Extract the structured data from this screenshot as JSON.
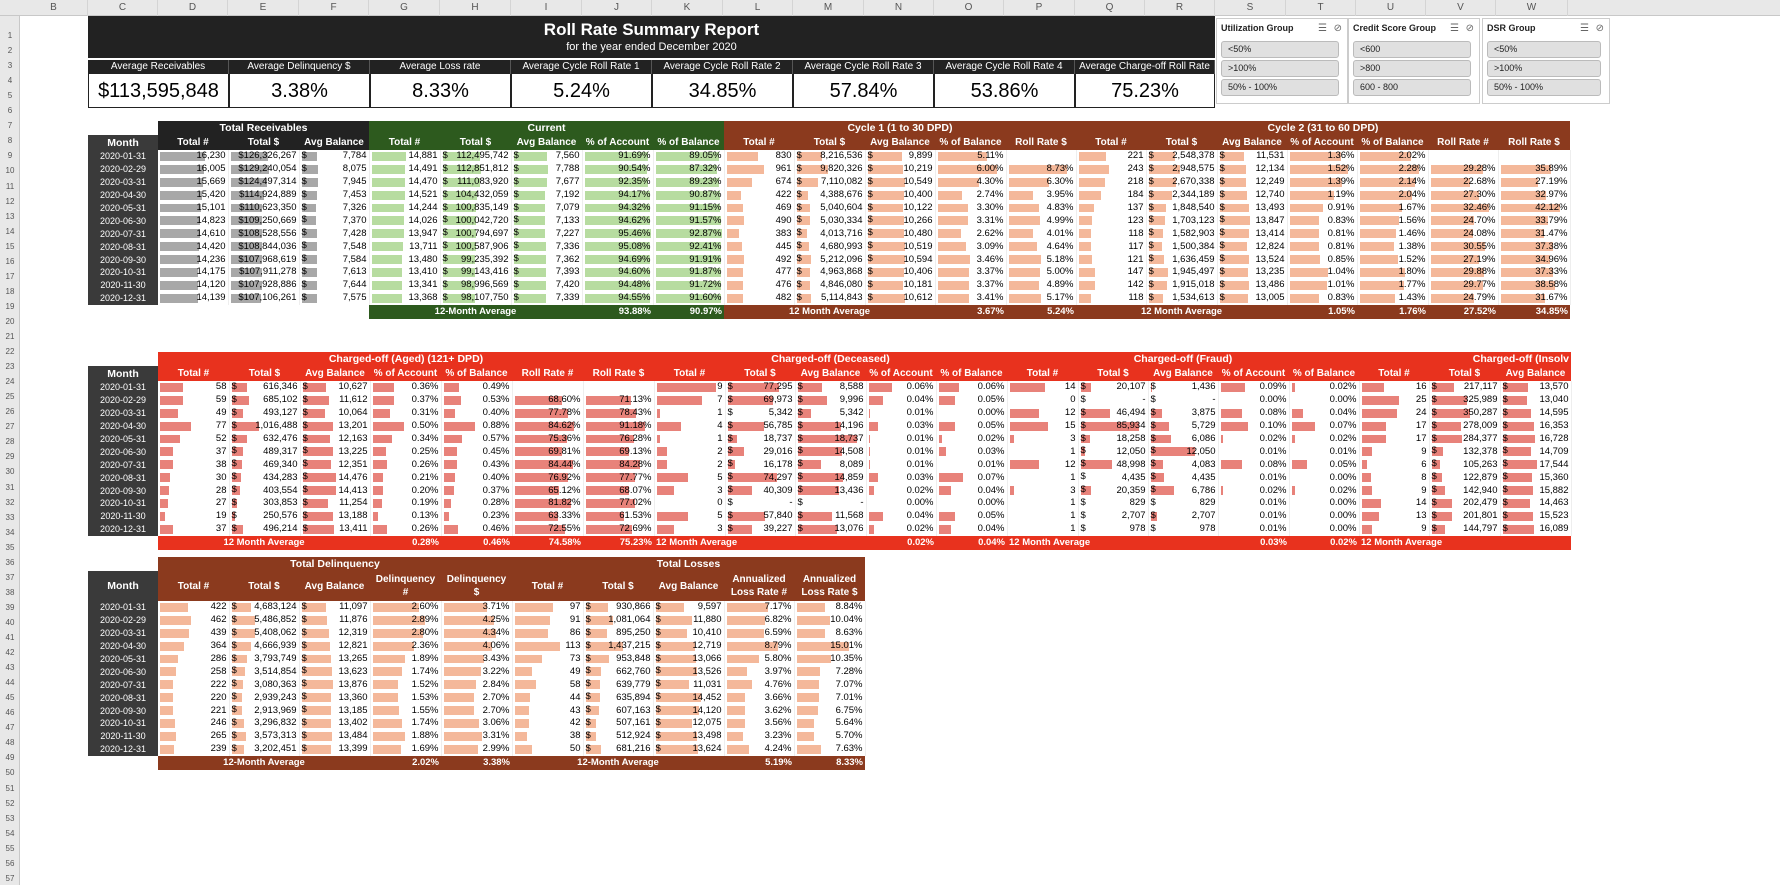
{
  "columns": [
    "B",
    "C",
    "D",
    "E",
    "F",
    "G",
    "H",
    "I",
    "J",
    "K",
    "L",
    "M",
    "N",
    "O",
    "P",
    "Q",
    "R",
    "S",
    "T",
    "U",
    "V",
    "W"
  ],
  "rows": [
    "1",
    "2",
    "3",
    "4",
    "5",
    "6",
    "7",
    "8",
    "9",
    "10",
    "11",
    "12",
    "13",
    "14",
    "15",
    "16",
    "17",
    "18",
    "19",
    "20",
    "21",
    "22",
    "23",
    "24",
    "25",
    "26",
    "27",
    "28",
    "29",
    "30",
    "31",
    "32",
    "33",
    "34",
    "35",
    "36",
    "37",
    "38",
    "39",
    "40",
    "41",
    "42",
    "43",
    "44",
    "45",
    "46",
    "47",
    "48",
    "49",
    "50",
    "51",
    "52",
    "53",
    "54",
    "55",
    "56",
    "57"
  ],
  "report": {
    "title": "Roll Rate Summary Report",
    "subtitle": "for the year ended December 2020"
  },
  "kpis": [
    {
      "label": "Average Receivables",
      "value": "$113,595,848"
    },
    {
      "label": "Average Delinquency $",
      "value": "3.38%"
    },
    {
      "label": "Average Loss rate",
      "value": "8.33%"
    },
    {
      "label": "Average Cycle Roll Rate 1",
      "value": "5.24%"
    },
    {
      "label": "Average Cycle Roll Rate 2",
      "value": "34.85%"
    },
    {
      "label": "Average Cycle Roll Rate 3",
      "value": "57.84%"
    },
    {
      "label": "Average Cycle Roll Rate 4",
      "value": "53.86%"
    },
    {
      "label": "Average Charge-off Roll Rate",
      "value": "75.23%"
    }
  ],
  "slicers": [
    {
      "title": "Utilization Group",
      "items": [
        "<50%",
        ">100%",
        "50% - 100%"
      ]
    },
    {
      "title": "Credit Score Group",
      "items": [
        "<600",
        ">800",
        "600 - 800"
      ]
    },
    {
      "title": "DSR Group",
      "items": [
        "<50%",
        ">100%",
        "50% - 100%"
      ]
    }
  ],
  "colors": {
    "dark": "#222222",
    "current_green": "#2d5a1e",
    "cycle_brown": "#8b3a1e",
    "chargeoff_red": "#e8321e",
    "bar_grey": "#a8a8a8",
    "bar_green": "#b7dca0",
    "bar_peach": "#f4b89a",
    "bar_red": "#e8827a"
  },
  "months": [
    "2020-01-31",
    "2020-02-29",
    "2020-03-31",
    "2020-04-30",
    "2020-05-31",
    "2020-06-30",
    "2020-07-31",
    "2020-08-31",
    "2020-09-30",
    "2020-10-31",
    "2020-11-30",
    "2020-12-31"
  ],
  "month_label": "Month",
  "t1": {
    "groups": [
      "Total Receivables",
      "Current",
      "Cycle 1 (1 to 30 DPD)",
      "Cycle 2 (31 to 60 DPD)"
    ],
    "headers": [
      "Total #",
      "Total $",
      "Avg Balance",
      "Total #",
      "Total $",
      "Avg Balance",
      "% of Account",
      "% of Balance",
      "Total #",
      "Total $",
      "Avg Balance",
      "% of Balance",
      "Roll Rate $",
      "Total #",
      "Total $",
      "Avg Balance",
      "% of Account",
      "% of Balance",
      "Roll Rate #",
      "Roll Rate $"
    ],
    "rows": [
      [
        "16,230",
        "$126,326,267",
        "7,784",
        "14,881",
        "112,495,742",
        "7,560",
        "91.69%",
        "89.05%",
        "830",
        "8,216,536",
        "9,899",
        "5.11%",
        "",
        "221",
        "2,548,378",
        "11,531",
        "1.36%",
        "2.02%",
        "",
        ""
      ],
      [
        "16,005",
        "$129,240,054",
        "8,075",
        "14,491",
        "112,851,812",
        "7,788",
        "90.54%",
        "87.32%",
        "961",
        "9,820,326",
        "10,219",
        "6.00%",
        "8.73%",
        "243",
        "2,948,575",
        "12,134",
        "1.52%",
        "2.28%",
        "29.28%",
        "35.89%"
      ],
      [
        "15,669",
        "$124,497,314",
        "7,945",
        "14,470",
        "111,083,920",
        "7,677",
        "92.35%",
        "89.23%",
        "674",
        "7,110,082",
        "10,549",
        "4.30%",
        "6.30%",
        "218",
        "2,670,338",
        "12,249",
        "1.39%",
        "2.14%",
        "22.68%",
        "27.19%"
      ],
      [
        "15,420",
        "$114,924,889",
        "7,453",
        "14,521",
        "104,432,059",
        "7,192",
        "94.17%",
        "90.87%",
        "422",
        "4,388,676",
        "10,400",
        "2.74%",
        "3.95%",
        "184",
        "2,344,189",
        "12,740",
        "1.19%",
        "2.04%",
        "27.30%",
        "32.97%"
      ],
      [
        "15,101",
        "$110,623,350",
        "7,326",
        "14,244",
        "100,835,149",
        "7,079",
        "94.32%",
        "91.15%",
        "469",
        "5,040,604",
        "10,122",
        "3.30%",
        "4.83%",
        "137",
        "1,848,540",
        "13,493",
        "0.91%",
        "1.67%",
        "32.46%",
        "42.12%"
      ],
      [
        "14,823",
        "$109,250,669",
        "7,370",
        "14,026",
        "100,042,720",
        "7,133",
        "94.62%",
        "91.57%",
        "490",
        "5,030,334",
        "10,266",
        "3.31%",
        "4.99%",
        "123",
        "1,703,123",
        "13,847",
        "0.83%",
        "1.56%",
        "24.70%",
        "33.79%"
      ],
      [
        "14,610",
        "$108,528,556",
        "7,428",
        "13,947",
        "100,794,697",
        "7,227",
        "95.46%",
        "92.87%",
        "383",
        "4,013,716",
        "10,480",
        "2.62%",
        "4.01%",
        "118",
        "1,582,903",
        "13,414",
        "0.81%",
        "1.46%",
        "24.08%",
        "31.47%"
      ],
      [
        "14,420",
        "$108,844,036",
        "7,548",
        "13,711",
        "100,587,906",
        "7,336",
        "95.08%",
        "92.41%",
        "445",
        "4,680,993",
        "10,519",
        "3.09%",
        "4.64%",
        "117",
        "1,500,384",
        "12,824",
        "0.81%",
        "1.38%",
        "30.55%",
        "37.38%"
      ],
      [
        "14,236",
        "$107,968,619",
        "7,584",
        "13,480",
        "99,235,392",
        "7,362",
        "94.69%",
        "91.91%",
        "492",
        "5,212,096",
        "10,594",
        "3.46%",
        "5.18%",
        "121",
        "1,636,459",
        "13,524",
        "0.85%",
        "1.52%",
        "27.19%",
        "34.96%"
      ],
      [
        "14,175",
        "$107,911,278",
        "7,613",
        "13,410",
        "99,143,416",
        "7,393",
        "94.60%",
        "91.87%",
        "477",
        "4,963,868",
        "10,406",
        "3.37%",
        "5.00%",
        "147",
        "1,945,497",
        "13,235",
        "1.04%",
        "1.80%",
        "29.88%",
        "37.33%"
      ],
      [
        "14,120",
        "$107,928,886",
        "7,644",
        "13,341",
        "98,996,569",
        "7,420",
        "94.48%",
        "91.72%",
        "476",
        "4,846,080",
        "10,181",
        "3.37%",
        "4.89%",
        "142",
        "1,915,018",
        "13,486",
        "1.01%",
        "1.77%",
        "29.77%",
        "38.58%"
      ],
      [
        "14,139",
        "$107,106,261",
        "7,575",
        "13,368",
        "98,107,750",
        "7,339",
        "94.55%",
        "91.60%",
        "482",
        "5,114,843",
        "10,612",
        "3.41%",
        "5.17%",
        "118",
        "1,534,613",
        "13,005",
        "0.83%",
        "1.43%",
        "24.79%",
        "31.67%"
      ]
    ],
    "avg_labels": [
      "12-Month Average",
      "12 Month Average",
      "12 Month Average"
    ],
    "avg_values": [
      "93.88%",
      "90.97%",
      "3.67%",
      "5.24%",
      "1.05%",
      "1.76%",
      "27.52%",
      "34.85%"
    ]
  },
  "t2": {
    "groups": [
      "Charged-off (Aged) (121+ DPD)",
      "Charged-off (Deceased)",
      "Charged-off (Fraud)",
      "Charged-off (Insolv"
    ],
    "headers": [
      "Total #",
      "Total $",
      "Avg Balance",
      "% of Account",
      "% of Balance",
      "Roll Rate #",
      "Roll Rate $",
      "Total #",
      "Total $",
      "Avg Balance",
      "% of Account",
      "% of Balance",
      "Total #",
      "Total $",
      "Avg Balance",
      "% of Account",
      "% of Balance",
      "Total #",
      "Total $",
      "Avg Balance"
    ],
    "rows": [
      [
        "58",
        "616,346",
        "10,627",
        "0.36%",
        "0.49%",
        "",
        "",
        "9",
        "77,295",
        "8,588",
        "0.06%",
        "0.06%",
        "14",
        "20,107",
        "1,436",
        "0.09%",
        "0.02%",
        "16",
        "217,117",
        "13,570"
      ],
      [
        "59",
        "685,102",
        "11,612",
        "0.37%",
        "0.53%",
        "68.60%",
        "71.13%",
        "7",
        "69,973",
        "9,996",
        "0.04%",
        "0.05%",
        "0",
        "-",
        "-",
        "0.00%",
        "0.00%",
        "25",
        "325,989",
        "13,040"
      ],
      [
        "49",
        "493,127",
        "10,064",
        "0.31%",
        "0.40%",
        "77.78%",
        "78.43%",
        "1",
        "5,342",
        "5,342",
        "0.01%",
        "0.00%",
        "12",
        "46,494",
        "3,875",
        "0.08%",
        "0.04%",
        "24",
        "350,287",
        "14,595"
      ],
      [
        "77",
        "1,016,488",
        "13,201",
        "0.50%",
        "0.88%",
        "84.62%",
        "91.18%",
        "4",
        "56,785",
        "14,196",
        "0.03%",
        "0.05%",
        "15",
        "85,934",
        "5,729",
        "0.10%",
        "0.07%",
        "17",
        "278,009",
        "16,353"
      ],
      [
        "52",
        "632,476",
        "12,163",
        "0.34%",
        "0.57%",
        "75.36%",
        "76.28%",
        "1",
        "18,737",
        "18,737",
        "0.01%",
        "0.02%",
        "3",
        "18,258",
        "6,086",
        "0.02%",
        "0.02%",
        "17",
        "284,377",
        "16,728"
      ],
      [
        "37",
        "489,317",
        "13,225",
        "0.25%",
        "0.45%",
        "69.81%",
        "69.13%",
        "2",
        "29,016",
        "14,508",
        "0.01%",
        "0.03%",
        "1",
        "12,050",
        "12,050",
        "0.01%",
        "0.01%",
        "9",
        "132,378",
        "14,709"
      ],
      [
        "38",
        "469,340",
        "12,351",
        "0.26%",
        "0.43%",
        "84.44%",
        "84.28%",
        "2",
        "16,178",
        "8,089",
        "0.01%",
        "0.01%",
        "12",
        "48,998",
        "4,083",
        "0.08%",
        "0.05%",
        "6",
        "105,263",
        "17,544"
      ],
      [
        "30",
        "434,283",
        "14,476",
        "0.21%",
        "0.40%",
        "76.92%",
        "77.77%",
        "5",
        "74,297",
        "14,859",
        "0.03%",
        "0.07%",
        "1",
        "4,435",
        "4,435",
        "0.01%",
        "0.00%",
        "8",
        "122,879",
        "15,360"
      ],
      [
        "28",
        "403,554",
        "14,413",
        "0.20%",
        "0.37%",
        "65.12%",
        "68.07%",
        "3",
        "40,309",
        "13,436",
        "0.02%",
        "0.04%",
        "3",
        "20,359",
        "6,786",
        "0.02%",
        "0.02%",
        "9",
        "142,940",
        "15,882"
      ],
      [
        "27",
        "303,853",
        "11,254",
        "0.19%",
        "0.28%",
        "81.82%",
        "77.02%",
        "0",
        "-",
        "-",
        "0.00%",
        "0.00%",
        "1",
        "829",
        "829",
        "0.01%",
        "0.00%",
        "14",
        "202,479",
        "14,463"
      ],
      [
        "19",
        "250,576",
        "13,188",
        "0.13%",
        "0.23%",
        "63.33%",
        "61.53%",
        "5",
        "57,840",
        "11,568",
        "0.04%",
        "0.05%",
        "1",
        "2,707",
        "2,707",
        "0.01%",
        "0.00%",
        "13",
        "201,801",
        "15,523"
      ],
      [
        "37",
        "496,214",
        "13,411",
        "0.26%",
        "0.46%",
        "72.55%",
        "72.69%",
        "3",
        "39,227",
        "13,076",
        "0.02%",
        "0.04%",
        "1",
        "978",
        "978",
        "0.01%",
        "0.00%",
        "9",
        "144,797",
        "16,089"
      ]
    ],
    "avg_labels": [
      "12 Month Average",
      "12 Month Average",
      "12 Month Average",
      "12 Month Average"
    ],
    "avg_values": [
      "0.28%",
      "0.46%",
      "74.58%",
      "75.23%",
      "0.02%",
      "0.04%",
      "0.03%",
      "0.02%"
    ]
  },
  "t3": {
    "groups": [
      "Total Delinquency",
      "Total Losses"
    ],
    "headers": [
      "Total #",
      "Total $",
      "Avg Balance",
      "Delinquency #",
      "Delinquency $",
      "Total #",
      "Total $",
      "Avg Balance",
      "Annualized Loss Rate #",
      "Annualized Loss Rate $"
    ],
    "rows": [
      [
        "422",
        "4,683,124",
        "11,097",
        "2.60%",
        "3.71%",
        "97",
        "930,866",
        "9,597",
        "7.17%",
        "8.84%"
      ],
      [
        "462",
        "5,486,852",
        "11,876",
        "2.89%",
        "4.25%",
        "91",
        "1,081,064",
        "11,880",
        "6.82%",
        "10.04%"
      ],
      [
        "439",
        "5,408,062",
        "12,319",
        "2.80%",
        "4.34%",
        "86",
        "895,250",
        "10,410",
        "6.59%",
        "8.63%"
      ],
      [
        "364",
        "4,666,939",
        "12,821",
        "2.36%",
        "4.06%",
        "113",
        "1,437,215",
        "12,719",
        "8.79%",
        "15.01%"
      ],
      [
        "286",
        "3,793,749",
        "13,265",
        "1.89%",
        "3.43%",
        "73",
        "953,848",
        "13,066",
        "5.80%",
        "10.35%"
      ],
      [
        "258",
        "3,514,854",
        "13,623",
        "1.74%",
        "3.22%",
        "49",
        "662,760",
        "13,526",
        "3.97%",
        "7.28%"
      ],
      [
        "222",
        "3,080,363",
        "13,876",
        "1.52%",
        "2.84%",
        "58",
        "639,779",
        "11,031",
        "4.76%",
        "7.07%"
      ],
      [
        "220",
        "2,939,243",
        "13,360",
        "1.53%",
        "2.70%",
        "44",
        "635,894",
        "14,452",
        "3.66%",
        "7.01%"
      ],
      [
        "221",
        "2,913,969",
        "13,185",
        "1.55%",
        "2.70%",
        "43",
        "607,163",
        "14,120",
        "3.62%",
        "6.75%"
      ],
      [
        "246",
        "3,296,832",
        "13,402",
        "1.74%",
        "3.06%",
        "42",
        "507,161",
        "12,075",
        "3.56%",
        "5.64%"
      ],
      [
        "265",
        "3,573,313",
        "13,484",
        "1.88%",
        "3.31%",
        "38",
        "512,924",
        "13,498",
        "3.23%",
        "5.70%"
      ],
      [
        "239",
        "3,202,451",
        "13,399",
        "1.69%",
        "2.99%",
        "50",
        "681,216",
        "13,624",
        "4.24%",
        "7.63%"
      ]
    ],
    "avg_labels": [
      "12-Month Average",
      "12-Month Average"
    ],
    "avg_values": [
      "2.02%",
      "3.38%",
      "5.19%",
      "8.33%"
    ]
  }
}
